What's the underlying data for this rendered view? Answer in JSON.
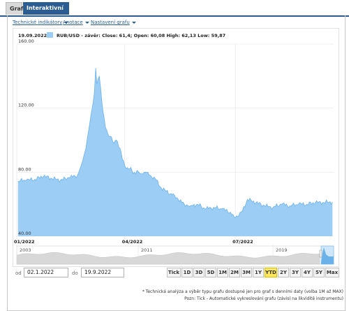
{
  "tabs": [
    {
      "label": "Graf",
      "active": false
    },
    {
      "label": "Interaktivní graf",
      "active": true
    }
  ],
  "menu": {
    "indicators": "Technické indikátory",
    "annotations": "Anotace",
    "settings": "Nastavení grafu"
  },
  "summary": {
    "date": "19.09.2022",
    "text": "RUB/USD - závěr: Close: 61,4; Open: 60,08 High: 62,13 Low: 59,87"
  },
  "chart_data": {
    "type": "area",
    "series": [
      {
        "name": "RUB/USD",
        "x": [
          "2022-01-03",
          "2022-01-10",
          "2022-01-17",
          "2022-01-24",
          "2022-01-31",
          "2022-02-07",
          "2022-02-14",
          "2022-02-21",
          "2022-02-24",
          "2022-02-28",
          "2022-03-02",
          "2022-03-04",
          "2022-03-07",
          "2022-03-08",
          "2022-03-09",
          "2022-03-10",
          "2022-03-11",
          "2022-03-14",
          "2022-03-16",
          "2022-03-18",
          "2022-03-21",
          "2022-03-23",
          "2022-03-25",
          "2022-03-28",
          "2022-03-30",
          "2022-04-01",
          "2022-04-04",
          "2022-04-06",
          "2022-04-08",
          "2022-04-11",
          "2022-04-14",
          "2022-04-18",
          "2022-04-22",
          "2022-04-26",
          "2022-04-30",
          "2022-05-05",
          "2022-05-10",
          "2022-05-15",
          "2022-05-20",
          "2022-05-25",
          "2022-05-31",
          "2022-06-06",
          "2022-06-13",
          "2022-06-20",
          "2022-06-27",
          "2022-06-30",
          "2022-07-04",
          "2022-07-07",
          "2022-07-11",
          "2022-07-18",
          "2022-07-25",
          "2022-08-01",
          "2022-08-08",
          "2022-08-15",
          "2022-08-22",
          "2022-08-29",
          "2022-09-05",
          "2022-09-12",
          "2022-09-19"
        ],
        "values": [
          74.5,
          75,
          75.5,
          77.5,
          76,
          75,
          76.5,
          78,
          84,
          95,
          105,
          115,
          130,
          145,
          135,
          138,
          140,
          118,
          108,
          104,
          102,
          98,
          100,
          95,
          88,
          84,
          82,
          83,
          79,
          81,
          79,
          80,
          78,
          76,
          71,
          68,
          66,
          63,
          60,
          59,
          60,
          57,
          58,
          57,
          55,
          52,
          53,
          56,
          63,
          61,
          59,
          58,
          60,
          59,
          60,
          60,
          61,
          61,
          61.4
        ]
      }
    ],
    "y_ticks": [
      "40.00",
      "80.00",
      "120.00",
      "160.00"
    ],
    "ylim": [
      40,
      160
    ],
    "x_ticks": [
      "01/2022",
      "04/2022",
      "07/2022"
    ],
    "xlim": [
      "2022-01-02",
      "2022-09-20"
    ],
    "grid": true,
    "navigator_labels": [
      "2003",
      "2011",
      "2019"
    ]
  },
  "range": {
    "from_label": "od",
    "from_value": "02.1.2022",
    "to_label": "do",
    "to_value": "19.9.2022"
  },
  "zoom_buttons": [
    "Tick",
    "1D",
    "3D",
    "5D",
    "1M",
    "2M",
    "3M",
    "1Y",
    "YTD",
    "2Y",
    "3Y",
    "4Y",
    "5Y",
    "Max"
  ],
  "zoom_active": "YTD",
  "footnotes": [
    "* Technická analýza a výběr typu grafu dostupné jen pro graf s denními daty (volba 1M až MAX)",
    "Pozn: Tick - Automatické vykreslování grafu (závisí na likviditě instrumentu)"
  ],
  "colors": {
    "accent": "#2c5d92",
    "area_fill": "#9ccdf5",
    "area_line": "#6cb2ea",
    "zoom_active": "#ffe85a"
  }
}
